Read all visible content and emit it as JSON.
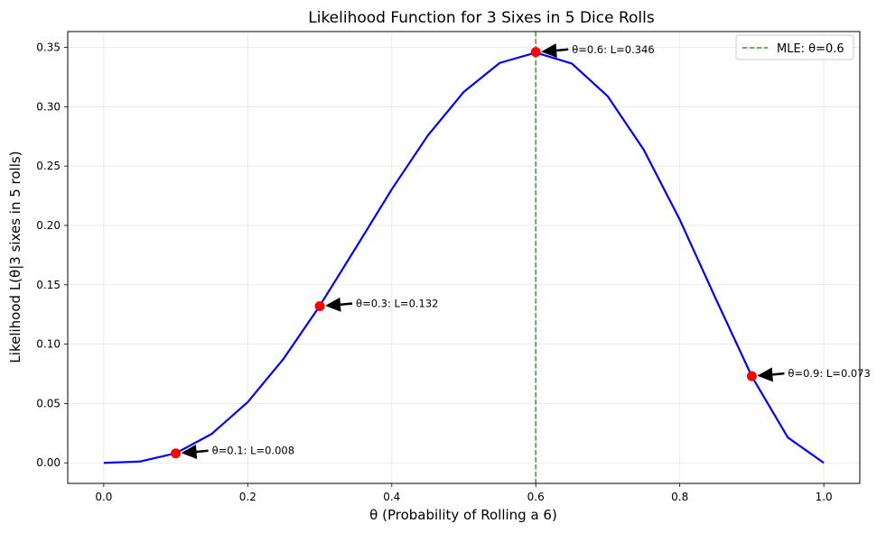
{
  "chart_data": {
    "type": "line",
    "title": "Likelihood Function for 3 Sixes in 5 Dice Rolls",
    "xlabel": "θ (Probability of Rolling a 6)",
    "ylabel": "Likelihood L(θ|3 sixes in 5 rolls)",
    "xlim": [
      -0.05,
      1.05
    ],
    "ylim": [
      -0.0173,
      0.3633
    ],
    "xticks": [
      0.0,
      0.2,
      0.4,
      0.6,
      0.8,
      1.0
    ],
    "xtick_labels": [
      "0.0",
      "0.2",
      "0.4",
      "0.6",
      "0.8",
      "1.0"
    ],
    "yticks": [
      0.0,
      0.05,
      0.1,
      0.15,
      0.2,
      0.25,
      0.3,
      0.35
    ],
    "ytick_labels": [
      "0.00",
      "0.05",
      "0.10",
      "0.15",
      "0.20",
      "0.25",
      "0.30",
      "0.35"
    ],
    "grid": true,
    "legend_position": "top-right",
    "series": [
      {
        "name": "",
        "style": "solid",
        "color": "#0000ff",
        "x": [
          0.0,
          0.05,
          0.1,
          0.15,
          0.2,
          0.25,
          0.3,
          0.35,
          0.4,
          0.45,
          0.5,
          0.55,
          0.6,
          0.65,
          0.7,
          0.75,
          0.8,
          0.85,
          0.9,
          0.95,
          1.0
        ],
        "y": [
          0.0,
          0.0011,
          0.0081,
          0.0244,
          0.0512,
          0.0879,
          0.1323,
          0.1811,
          0.2304,
          0.2757,
          0.3125,
          0.3369,
          0.3456,
          0.3364,
          0.3087,
          0.2637,
          0.2048,
          0.1382,
          0.0729,
          0.0214,
          0.0
        ]
      }
    ],
    "points": [
      {
        "x": 0.1,
        "y": 0.008,
        "label": "θ=0.1: L=0.008"
      },
      {
        "x": 0.3,
        "y": 0.132,
        "label": "θ=0.3: L=0.132"
      },
      {
        "x": 0.6,
        "y": 0.346,
        "label": "θ=0.6: L=0.346"
      },
      {
        "x": 0.9,
        "y": 0.073,
        "label": "θ=0.9: L=0.073"
      }
    ],
    "mle_line": {
      "x": 0.6,
      "label": "MLE: θ=0.6",
      "color": "#2ca02c",
      "style": "dashed"
    },
    "point_color": "#ff0000"
  }
}
